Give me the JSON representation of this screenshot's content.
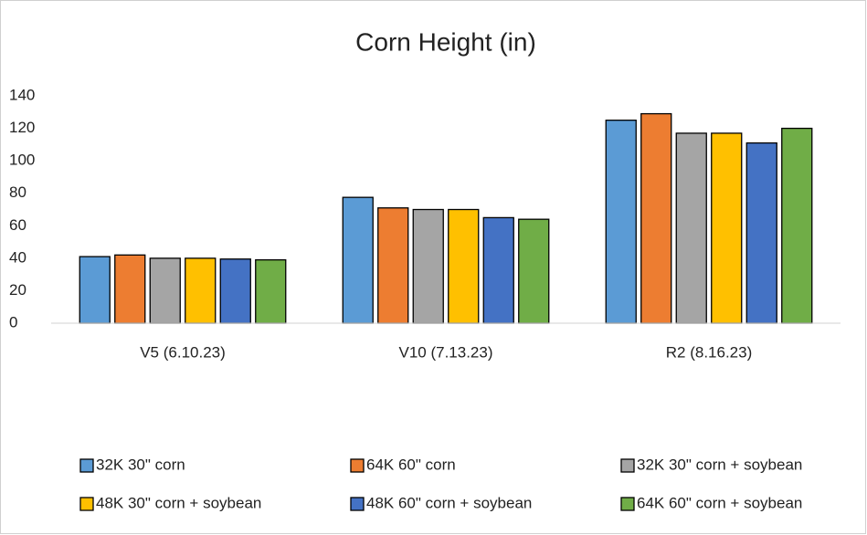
{
  "chart_data": {
    "type": "bar",
    "title": "Corn Height (in)",
    "categories": [
      "V5 (6.10.23)",
      "V10 (7.13.23)",
      "R2 (8.16.23)"
    ],
    "series": [
      {
        "name": "32K 30\" corn",
        "color": "#5b9bd5",
        "values": [
          41,
          77.5,
          125
        ]
      },
      {
        "name": "64K 60\" corn",
        "color": "#ed7d31",
        "values": [
          42,
          71,
          129
        ]
      },
      {
        "name": "32K 30\" corn + soybean",
        "color": "#a5a5a5",
        "values": [
          40,
          70,
          117
        ]
      },
      {
        "name": "48K 30\" corn + soybean",
        "color": "#ffc000",
        "values": [
          40,
          70,
          117
        ]
      },
      {
        "name": "48K 60\" corn + soybean",
        "color": "#4472c4",
        "values": [
          39.5,
          65,
          111
        ]
      },
      {
        "name": "64K 60\" corn + soybean",
        "color": "#70ad47",
        "values": [
          39,
          64,
          120
        ]
      }
    ],
    "ylim": [
      0,
      140
    ],
    "yticks": [
      0,
      20,
      40,
      60,
      80,
      100,
      120,
      140
    ],
    "legend": "bottom"
  }
}
